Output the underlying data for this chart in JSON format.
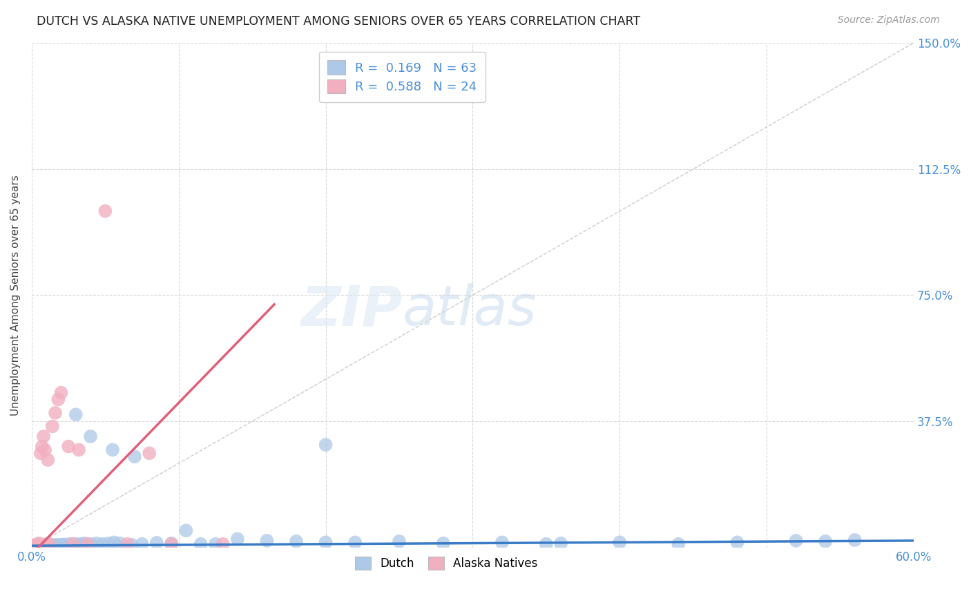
{
  "title": "DUTCH VS ALASKA NATIVE UNEMPLOYMENT AMONG SENIORS OVER 65 YEARS CORRELATION CHART",
  "source": "Source: ZipAtlas.com",
  "ylabel": "Unemployment Among Seniors over 65 years",
  "xlim": [
    0.0,
    0.6
  ],
  "ylim": [
    0.0,
    1.5
  ],
  "dutch_R": 0.169,
  "dutch_N": 63,
  "alaska_R": 0.588,
  "alaska_N": 24,
  "dutch_color": "#adc8e8",
  "alaska_color": "#f2afc0",
  "dutch_line_color": "#3a7cc7",
  "alaska_line_color": "#e0607a",
  "diagonal_color": "#cccccc",
  "legend_text_color": "#4a90d9",
  "background_color": "#ffffff",
  "dutch_x": [
    0.002,
    0.003,
    0.004,
    0.005,
    0.006,
    0.007,
    0.008,
    0.009,
    0.01,
    0.01,
    0.011,
    0.012,
    0.013,
    0.014,
    0.015,
    0.016,
    0.017,
    0.018,
    0.019,
    0.02,
    0.021,
    0.022,
    0.024,
    0.026,
    0.028,
    0.03,
    0.032,
    0.034,
    0.036,
    0.04,
    0.044,
    0.048,
    0.052,
    0.056,
    0.06,
    0.068,
    0.075,
    0.085,
    0.095,
    0.105,
    0.115,
    0.125,
    0.14,
    0.16,
    0.18,
    0.2,
    0.22,
    0.25,
    0.28,
    0.32,
    0.36,
    0.4,
    0.44,
    0.48,
    0.52,
    0.54,
    0.56,
    0.03,
    0.04,
    0.055,
    0.07,
    0.2,
    0.35
  ],
  "dutch_y": [
    0.005,
    0.004,
    0.006,
    0.005,
    0.007,
    0.005,
    0.006,
    0.008,
    0.005,
    0.006,
    0.007,
    0.005,
    0.008,
    0.006,
    0.007,
    0.005,
    0.008,
    0.006,
    0.007,
    0.008,
    0.007,
    0.009,
    0.008,
    0.01,
    0.009,
    0.01,
    0.009,
    0.01,
    0.012,
    0.01,
    0.012,
    0.01,
    0.012,
    0.015,
    0.012,
    0.008,
    0.01,
    0.014,
    0.012,
    0.05,
    0.01,
    0.01,
    0.025,
    0.02,
    0.018,
    0.015,
    0.015,
    0.018,
    0.012,
    0.015,
    0.012,
    0.015,
    0.01,
    0.015,
    0.02,
    0.018,
    0.022,
    0.395,
    0.33,
    0.29,
    0.27,
    0.305,
    0.01
  ],
  "alaska_x": [
    0.002,
    0.003,
    0.004,
    0.005,
    0.006,
    0.007,
    0.008,
    0.009,
    0.01,
    0.011,
    0.012,
    0.014,
    0.016,
    0.018,
    0.02,
    0.025,
    0.028,
    0.032,
    0.038,
    0.05,
    0.065,
    0.08,
    0.095,
    0.13
  ],
  "alaska_y": [
    0.005,
    0.008,
    0.01,
    0.012,
    0.28,
    0.3,
    0.33,
    0.29,
    0.01,
    0.26,
    0.01,
    0.36,
    0.4,
    0.44,
    0.46,
    0.3,
    0.01,
    0.29,
    0.01,
    1.0,
    0.01,
    0.28,
    0.01,
    0.01
  ]
}
